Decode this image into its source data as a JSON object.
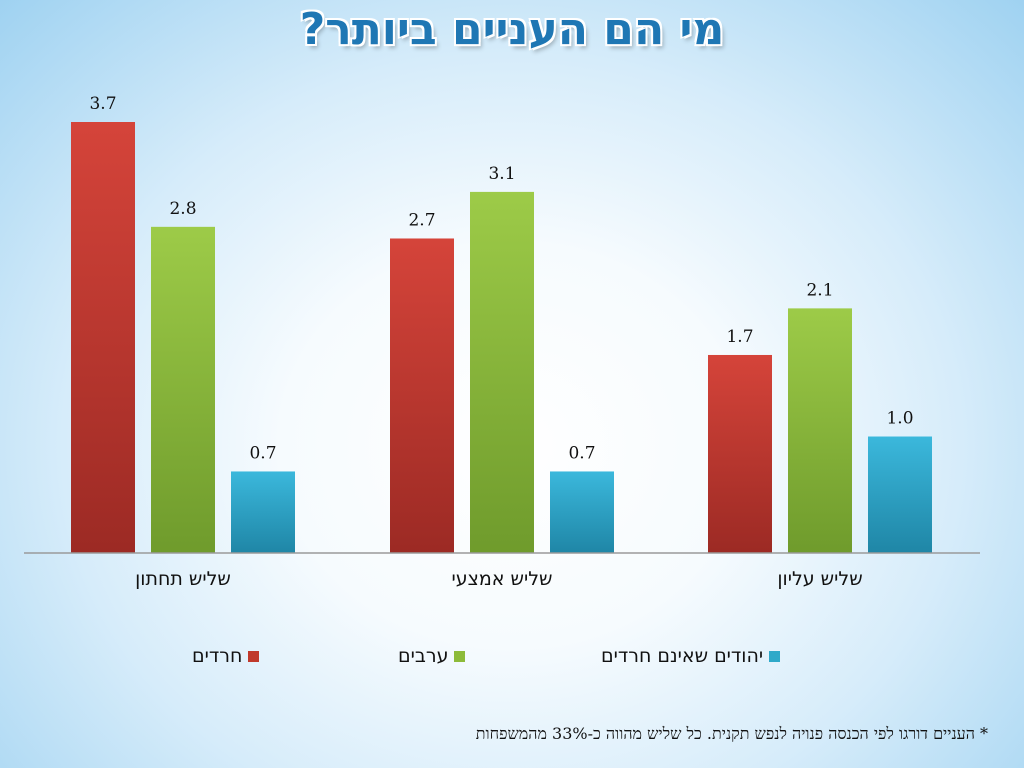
{
  "title": "מי הם העניים ביותר?",
  "footnote": "* העניים דורגו לפי הכנסה פנויה לנפש תקנית. כל שליש מהווה כ-33% מהמשפחות",
  "colors": {
    "red": "#c0392b",
    "green": "#8dbb3a",
    "blue": "#2ea9c9"
  },
  "chart_data": {
    "type": "bar",
    "categories": [
      "שליש תחתון",
      "שליש אמצעי",
      "שליש עליון"
    ],
    "series": [
      {
        "name": "חרדים",
        "values": [
          3.7,
          2.7,
          1.7
        ],
        "color": "#c0392b"
      },
      {
        "name": "ערבים",
        "values": [
          2.8,
          3.1,
          2.1
        ],
        "color": "#8dbb3a"
      },
      {
        "name": "יהודים שאינם חרדים",
        "values": [
          0.7,
          0.7,
          1.0
        ],
        "color": "#2ea9c9"
      }
    ],
    "data_labels": [
      [
        "3.7",
        "2.7",
        "1.7"
      ],
      [
        "2.8",
        "3.1",
        "2.1"
      ],
      [
        "0.7",
        "0.7",
        "1.0"
      ]
    ],
    "ylim": [
      0,
      3.7
    ],
    "grid": false,
    "legend_position": "bottom"
  }
}
